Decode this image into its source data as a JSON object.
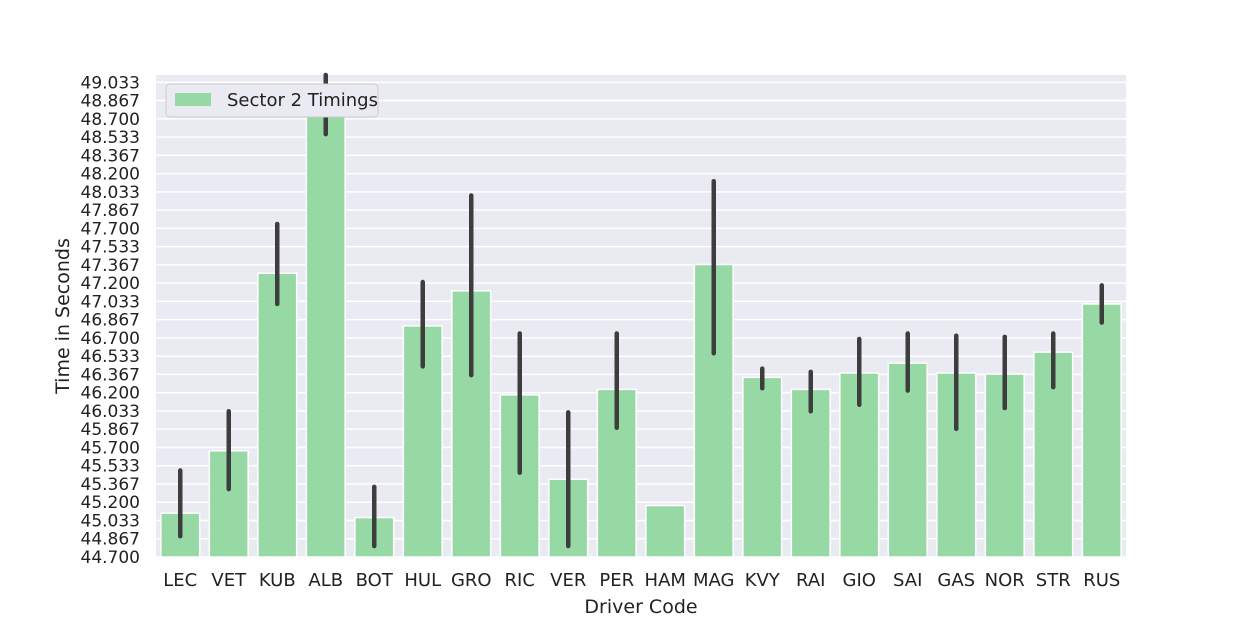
{
  "chart_data": {
    "type": "bar",
    "title": "",
    "xlabel": "Driver Code",
    "ylabel": "Time in Seconds",
    "ylim": [
      44.7,
      49.1
    ],
    "yticks": [
      "44.700",
      "44.867",
      "45.033",
      "45.200",
      "45.367",
      "45.533",
      "45.700",
      "45.867",
      "46.033",
      "46.200",
      "46.367",
      "46.533",
      "46.700",
      "46.867",
      "47.033",
      "47.200",
      "47.367",
      "47.533",
      "47.700",
      "47.867",
      "48.033",
      "48.200",
      "48.367",
      "48.533",
      "48.700",
      "48.867",
      "49.033"
    ],
    "grid": true,
    "legend_position": "top-left",
    "bar_color": "#97d9a5",
    "error_bar_color": "#3d3d3d",
    "plot_background": "#eaeaf2",
    "categories": [
      "LEC",
      "VET",
      "KUB",
      "ALB",
      "BOT",
      "HUL",
      "GRO",
      "RIC",
      "VER",
      "PER",
      "HAM",
      "MAG",
      "KVY",
      "RAI",
      "GIO",
      "SAI",
      "GAS",
      "NOR",
      "STR",
      "RUS"
    ],
    "series": [
      {
        "name": "Sector 2 Timings",
        "values": [
          45.1,
          45.67,
          47.29,
          48.8,
          45.06,
          46.81,
          47.13,
          46.18,
          45.41,
          46.23,
          45.17,
          47.37,
          46.34,
          46.23,
          46.38,
          46.47,
          46.38,
          46.37,
          46.57,
          47.01
        ],
        "error_low": [
          44.89,
          45.32,
          47.01,
          48.56,
          44.8,
          46.44,
          46.36,
          45.47,
          44.8,
          45.88,
          null,
          46.56,
          46.24,
          46.03,
          46.09,
          46.22,
          45.87,
          46.06,
          46.25,
          46.84
        ],
        "error_high": [
          45.49,
          46.03,
          47.74,
          49.1,
          45.34,
          47.21,
          48.0,
          46.74,
          46.02,
          46.74,
          null,
          48.13,
          46.42,
          46.39,
          46.69,
          46.74,
          46.72,
          46.71,
          46.74,
          47.18
        ]
      }
    ]
  }
}
